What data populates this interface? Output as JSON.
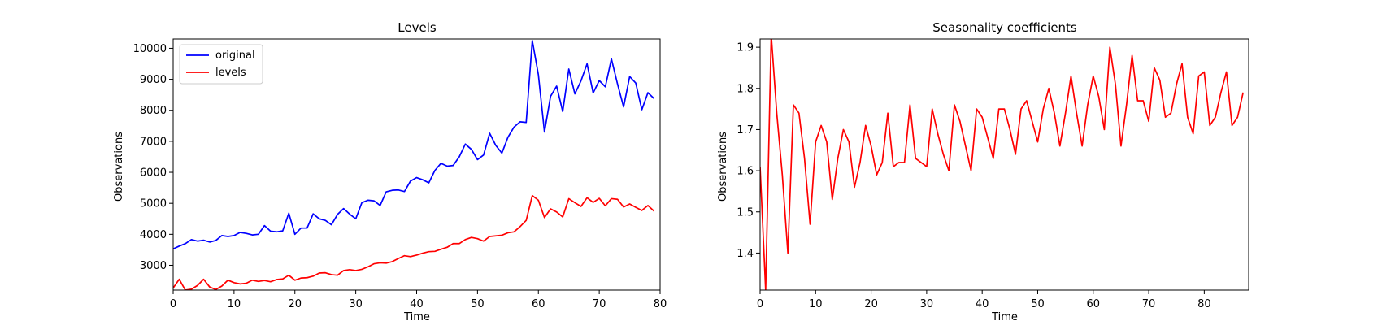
{
  "chart_data": [
    {
      "type": "line",
      "title": "Levels",
      "xlabel": "Time",
      "ylabel": "Observations",
      "xlim": [
        0,
        80
      ],
      "ylim": [
        2200,
        10300
      ],
      "xticks": [
        0,
        10,
        20,
        30,
        40,
        50,
        60,
        70,
        80
      ],
      "yticks": [
        3000,
        4000,
        5000,
        6000,
        7000,
        8000,
        9000,
        10000
      ],
      "grid": false,
      "legend": "top-left",
      "series": [
        {
          "name": "original",
          "color": "#0000ff",
          "values": [
            3530,
            3620,
            3700,
            3830,
            3780,
            3810,
            3750,
            3800,
            3960,
            3930,
            3960,
            4060,
            4030,
            3980,
            4000,
            4280,
            4100,
            4080,
            4110,
            4680,
            4000,
            4200,
            4200,
            4660,
            4500,
            4450,
            4310,
            4640,
            4830,
            4650,
            4500,
            5020,
            5100,
            5080,
            4930,
            5370,
            5420,
            5430,
            5380,
            5720,
            5830,
            5760,
            5660,
            6060,
            6290,
            6200,
            6220,
            6500,
            6910,
            6740,
            6410,
            6560,
            7260,
            6870,
            6620,
            7130,
            7460,
            7630,
            7610,
            10250,
            9150,
            7300,
            8450,
            8780,
            7960,
            9330,
            8530,
            8950,
            9500,
            8560,
            8960,
            8760,
            9660,
            8850,
            8110,
            9090,
            8880,
            8020,
            8570,
            8380
          ]
        },
        {
          "name": "levels",
          "color": "#ff0000",
          "values": [
            2270,
            2550,
            2200,
            2230,
            2350,
            2550,
            2300,
            2220,
            2330,
            2520,
            2440,
            2400,
            2420,
            2520,
            2480,
            2510,
            2470,
            2540,
            2560,
            2680,
            2520,
            2590,
            2600,
            2650,
            2750,
            2760,
            2700,
            2680,
            2830,
            2860,
            2830,
            2870,
            2950,
            3050,
            3080,
            3070,
            3120,
            3220,
            3310,
            3280,
            3330,
            3390,
            3440,
            3450,
            3520,
            3580,
            3700,
            3700,
            3830,
            3900,
            3860,
            3780,
            3930,
            3950,
            3970,
            4050,
            4080,
            4250,
            4450,
            5250,
            5100,
            4540,
            4820,
            4720,
            4560,
            5150,
            5020,
            4900,
            5180,
            5030,
            5160,
            4920,
            5150,
            5130,
            4880,
            4980,
            4870,
            4770,
            4930,
            4750
          ]
        }
      ]
    },
    {
      "type": "line",
      "title": "Seasonality coefficients",
      "xlabel": "Time",
      "ylabel": "Observations",
      "xlim": [
        0,
        88
      ],
      "ylim": [
        1.31,
        1.92
      ],
      "xticks": [
        0,
        10,
        20,
        30,
        40,
        50,
        60,
        70,
        80
      ],
      "yticks": [
        1.4,
        1.5,
        1.6,
        1.7,
        1.8,
        1.9
      ],
      "grid": false,
      "series": [
        {
          "color": "#ff0000",
          "values": [
            1.61,
            1.31,
            1.93,
            1.74,
            1.59,
            1.4,
            1.76,
            1.74,
            1.63,
            1.47,
            1.67,
            1.71,
            1.67,
            1.53,
            1.63,
            1.7,
            1.67,
            1.56,
            1.62,
            1.71,
            1.66,
            1.59,
            1.62,
            1.74,
            1.61,
            1.62,
            1.62,
            1.76,
            1.63,
            1.62,
            1.61,
            1.75,
            1.69,
            1.64,
            1.6,
            1.76,
            1.72,
            1.66,
            1.6,
            1.75,
            1.73,
            1.68,
            1.63,
            1.75,
            1.75,
            1.7,
            1.64,
            1.75,
            1.77,
            1.72,
            1.67,
            1.75,
            1.8,
            1.74,
            1.66,
            1.74,
            1.83,
            1.74,
            1.66,
            1.76,
            1.83,
            1.78,
            1.7,
            1.9,
            1.81,
            1.66,
            1.76,
            1.88,
            1.77,
            1.77,
            1.72,
            1.85,
            1.82,
            1.73,
            1.74,
            1.81,
            1.86,
            1.73,
            1.69,
            1.83,
            1.84,
            1.71,
            1.73,
            1.79,
            1.84,
            1.71,
            1.73,
            1.79
          ]
        }
      ]
    }
  ]
}
